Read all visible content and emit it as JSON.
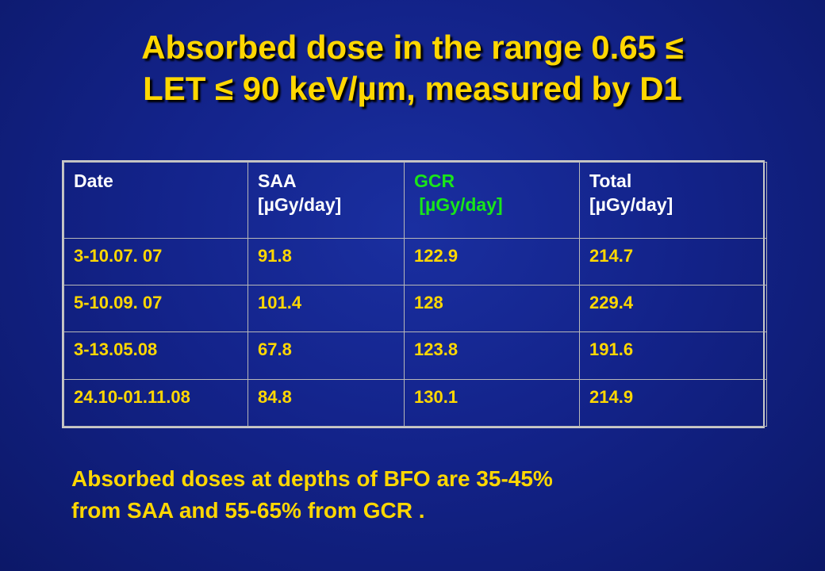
{
  "title": {
    "line1": "Absorbed dose in the range 0.65 ≤",
    "line2": "LET ≤ 90 keV/µm, measured by D1"
  },
  "table": {
    "headers": [
      {
        "name": "Date",
        "unit": ""
      },
      {
        "name": "SAA",
        "unit": "[µGy/day]"
      },
      {
        "name": "GCR",
        "unit": " [µGy/day]"
      },
      {
        "name": "Total",
        "unit": "[µGy/day]"
      }
    ],
    "rows": [
      [
        "3-10.07. 07",
        "91.8",
        "122.9",
        "214.7"
      ],
      [
        "5-10.09. 07",
        "101.4",
        "128",
        "229.4"
      ],
      [
        "3-13.05.08",
        "67.8",
        "123.8",
        "191.6"
      ],
      [
        "24.10-01.11.08",
        "84.8",
        "130.1",
        "214.9"
      ]
    ]
  },
  "note": {
    "line1": "Absorbed doses at depths of BFO are 35-45%",
    "line2": "from SAA and 55-65% from GCR ."
  },
  "colors": {
    "title": "#ffd700",
    "header_text": "#ffffff",
    "gcr_header": "#19e619",
    "cell_text": "#ffd700",
    "background": "#13238a"
  }
}
